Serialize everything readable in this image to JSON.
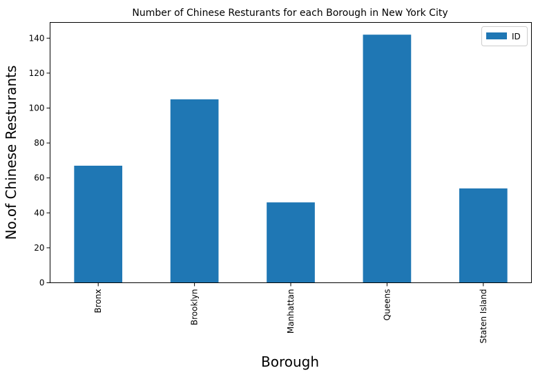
{
  "chart_data": {
    "type": "bar",
    "title": "Number of Chinese Resturants for each Borough in New York City",
    "xlabel": "Borough",
    "ylabel": "No.of Chinese Resturants",
    "categories": [
      "Bronx",
      "Brooklyn",
      "Manhattan",
      "Queens",
      "Staten Island"
    ],
    "series": [
      {
        "name": "ID",
        "values": [
          67,
          105,
          46,
          142,
          54
        ]
      }
    ],
    "ylim": [
      0,
      149
    ],
    "yticks": [
      0,
      20,
      40,
      60,
      80,
      100,
      120,
      140
    ],
    "grid": false,
    "legend_position": "top-right",
    "bar_color": "#1f77b4"
  }
}
